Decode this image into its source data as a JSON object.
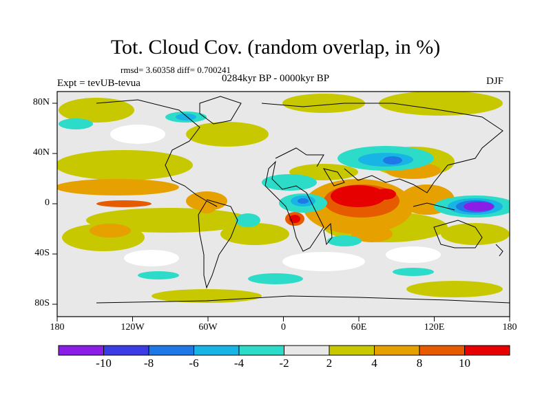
{
  "title": "Tot. Cloud Cov. (random overlap, in %)",
  "stats": "rmsd= 3.60358 diff= 0.700241",
  "experiment": "Expt = tevUB-tevua",
  "period": "0284kyr BP - 0000kyr BP",
  "season": "DJF",
  "lat_labels": [
    "80N",
    "40N",
    "0",
    "40S",
    "80S"
  ],
  "lon_labels": [
    "180",
    "120W",
    "60W",
    "0",
    "60E",
    "120E",
    "180"
  ],
  "colorbar": {
    "labels": [
      "-10",
      "-8",
      "-6",
      "-4",
      "-2",
      "2",
      "4",
      "8",
      "10"
    ],
    "colors": [
      "#8a1ee6",
      "#3c3ce6",
      "#1e78e6",
      "#19b4e6",
      "#2ddcc8",
      "#e8e8e8",
      "#c8c800",
      "#e6a000",
      "#e65a00",
      "#e60000"
    ]
  }
}
